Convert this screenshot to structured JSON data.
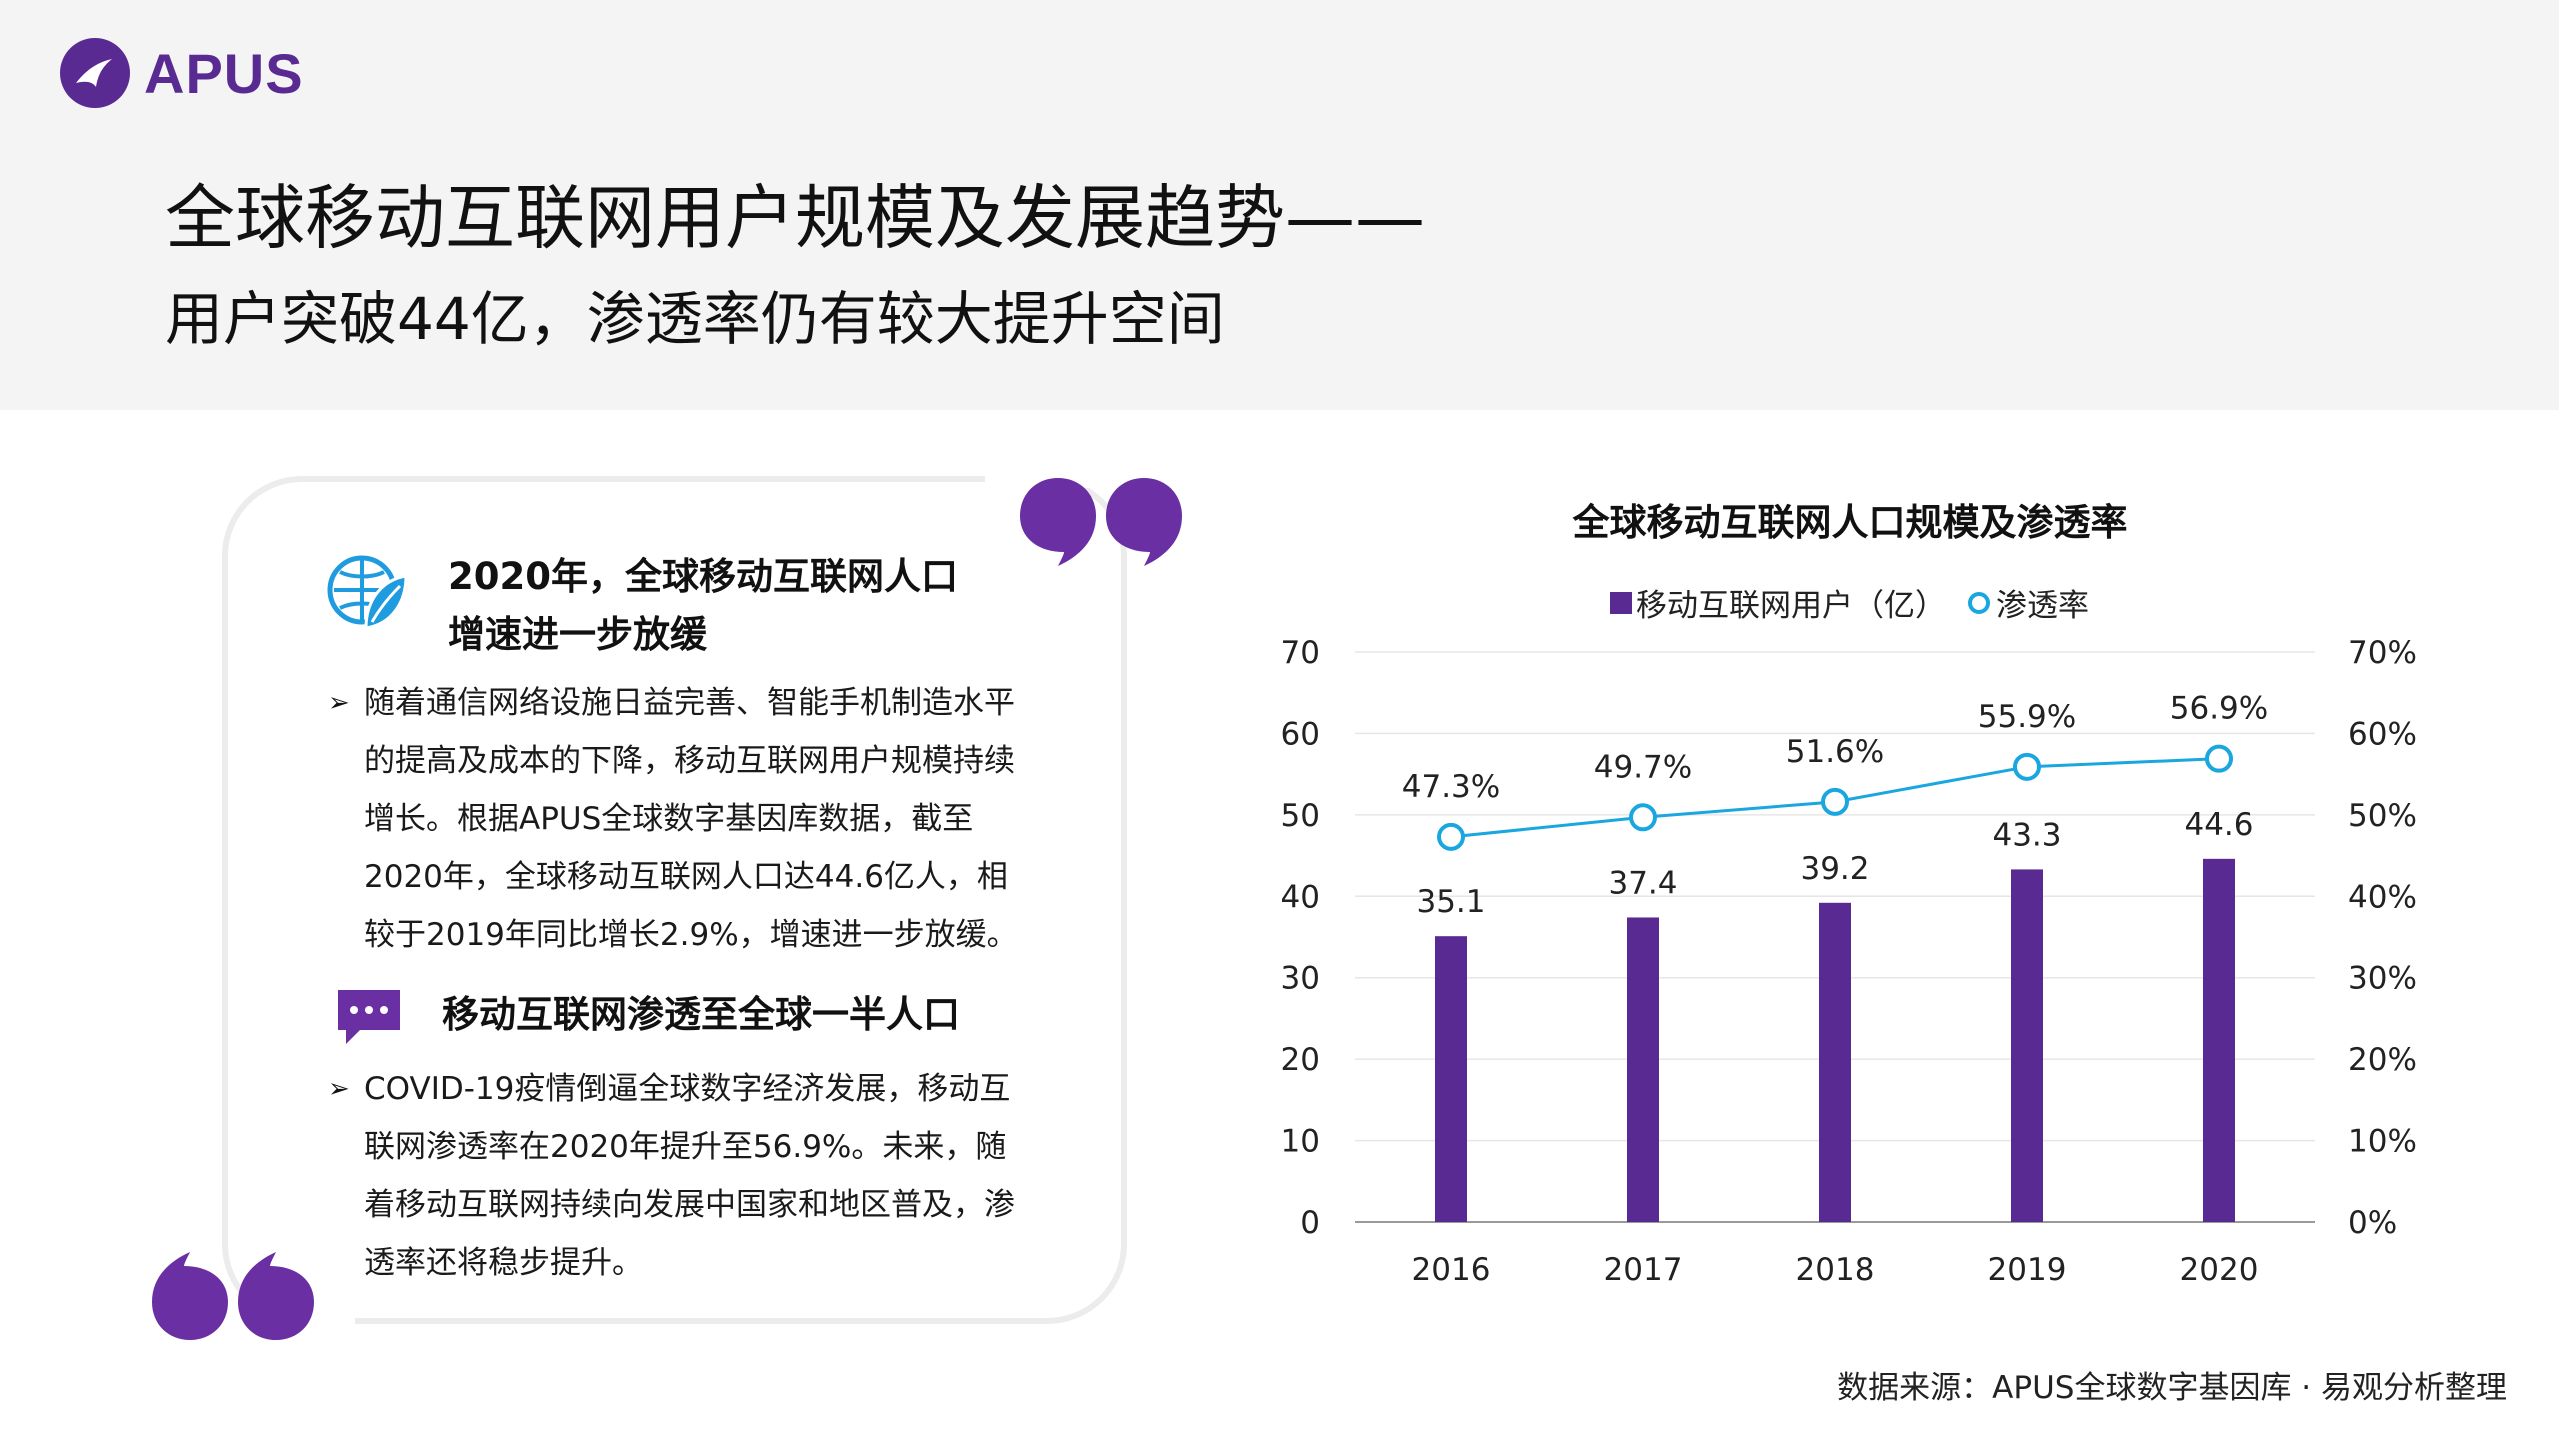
{
  "brand": {
    "name": "APUS"
  },
  "title": {
    "main": "全球移动互联网用户规模及发展趋势——",
    "sub": "用户突破44亿，渗透率仍有较大提升空间"
  },
  "panel": {
    "section1": {
      "icon": "globe-leaf-icon",
      "heading_lines": [
        "2020年，全球移动互联网人口",
        "增速进一步放缓"
      ],
      "bullet_lines": [
        "随着通信网络设施日益完善、智能手机制造水平",
        "的提高及成本的下降，移动互联网用户规模持续",
        "增长。根据APUS全球数字基因库数据，截至",
        "2020年，全球移动互联网人口达44.6亿人，相",
        "较于2019年同比增长2.9%，增速进一步放缓。"
      ]
    },
    "section2": {
      "icon": "chat-bubble-icon",
      "heading": "移动互联网渗透至全球一半人口",
      "bullet_lines": [
        "COVID-19疫情倒逼全球数字经济发展，移动互",
        "联网渗透率在2020年提升至56.9%。未来，随",
        "着移动互联网持续向发展中国家和地区普及，渗",
        "透率还将稳步提升。"
      ]
    },
    "bullet_marker": "➢"
  },
  "chart_data": {
    "type": "bar",
    "title": "全球移动互联网人口规模及渗透率",
    "categories": [
      "2016",
      "2017",
      "2018",
      "2019",
      "2020"
    ],
    "series": [
      {
        "name": "移动互联网用户（亿）",
        "type": "bar",
        "axis": "left",
        "values": [
          35.1,
          37.4,
          39.2,
          43.3,
          44.6
        ],
        "labels": [
          "35.1",
          "37.4",
          "39.2",
          "43.3",
          "44.6"
        ]
      },
      {
        "name": "渗透率",
        "type": "line",
        "axis": "right",
        "values": [
          47.3,
          49.7,
          51.6,
          55.9,
          56.9
        ],
        "labels": [
          "47.3%",
          "49.7%",
          "51.6%",
          "55.9%",
          "56.9%"
        ]
      }
    ],
    "y_left": {
      "min": 0,
      "max": 70,
      "ticks": [
        "0",
        "10",
        "20",
        "30",
        "40",
        "50",
        "60",
        "70"
      ]
    },
    "y_right": {
      "min": 0,
      "max": 70,
      "ticks": [
        "0%",
        "10%",
        "20%",
        "30%",
        "40%",
        "50%",
        "60%",
        "70%"
      ]
    },
    "grid": true,
    "legend": "top-center",
    "colors": {
      "bar": "#5a2a93",
      "line": "#1aa6de",
      "grid": "#e6e6e6"
    }
  },
  "source": "数据来源：APUS全球数字基因库 · 易观分析整理"
}
